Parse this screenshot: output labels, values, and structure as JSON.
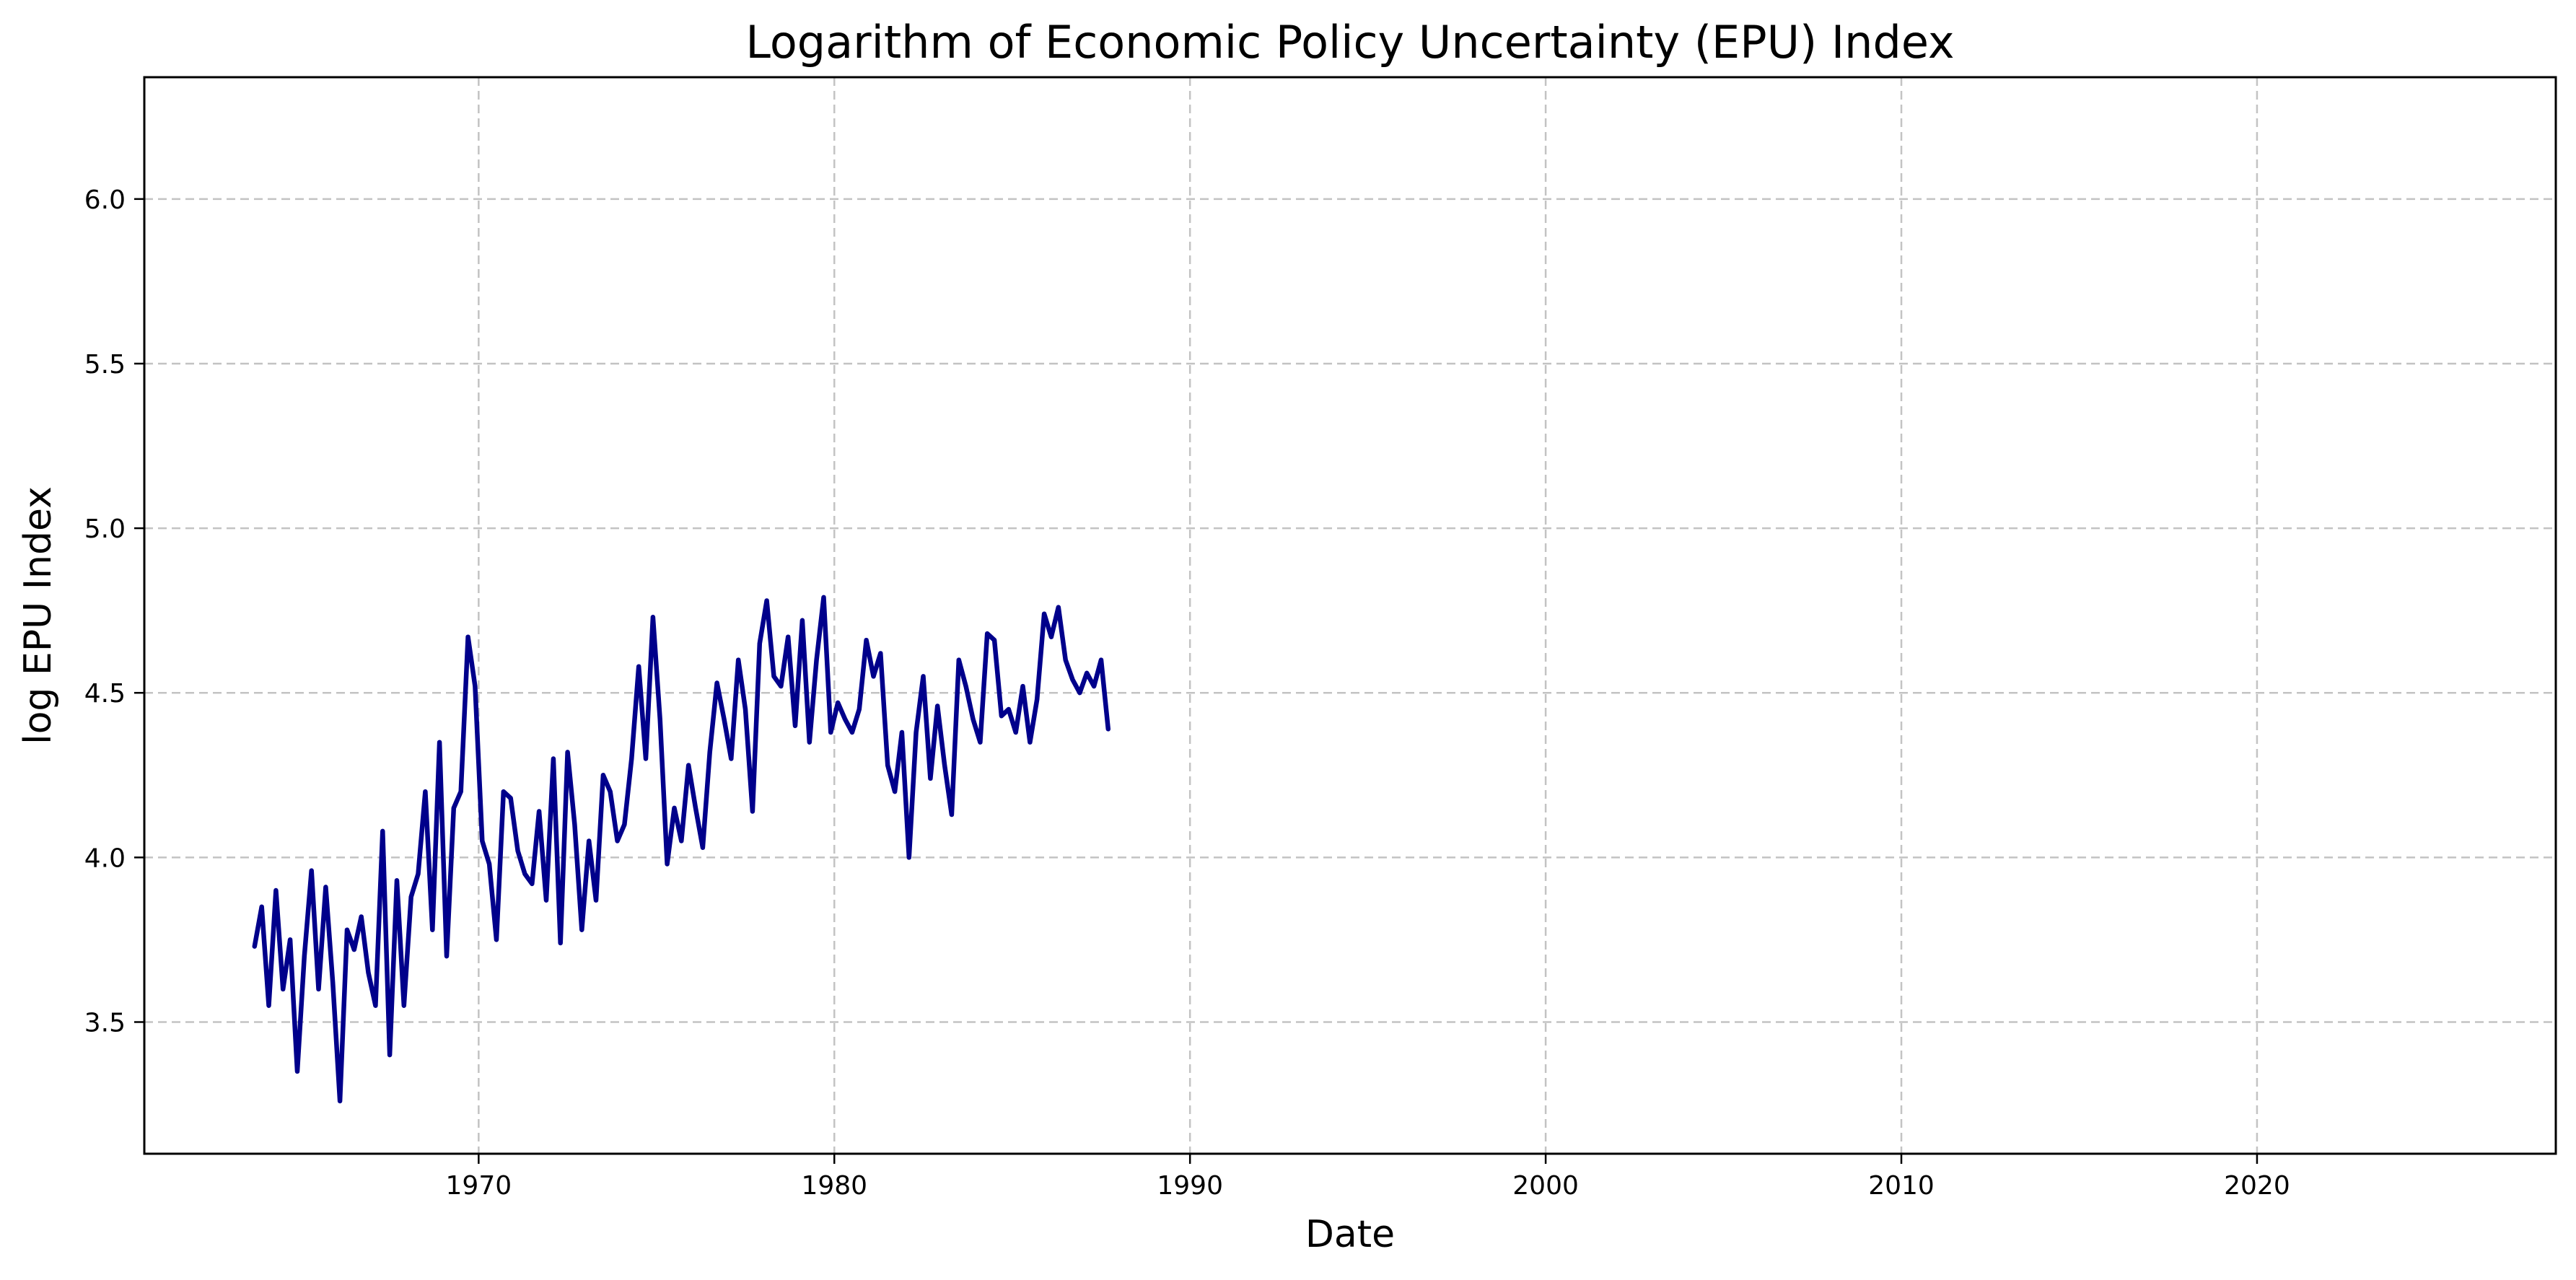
{
  "chart_data": {
    "type": "line",
    "title": "Logarithm of Economic Policy Uncertainty (EPU) Index",
    "xlabel": "Date",
    "ylabel": "log EPU Index",
    "xlim": [
      1960.6,
      1988.0
    ],
    "xlim_full": [
      1960.6,
      2028.4
    ],
    "ylim": [
      3.1,
      6.37
    ],
    "xticks": [
      1970,
      1980,
      1990,
      2000,
      2010,
      2020
    ],
    "yticks": [
      "3.5",
      "4.0",
      "4.5",
      "5.0",
      "5.5",
      "6.0"
    ],
    "grid": true,
    "color": "#00008b",
    "x": [
      1963.7,
      1963.9,
      1964.1,
      1964.3,
      1964.5,
      1964.7,
      1964.9,
      1965.1,
      1965.3,
      1965.5,
      1965.7,
      1965.9,
      1966.1,
      1966.3,
      1966.5,
      1966.7,
      1966.9,
      1967.1,
      1967.3,
      1967.5,
      1967.7,
      1967.9,
      1968.1,
      1968.3,
      1968.5,
      1968.7,
      1968.9,
      1969.1,
      1969.3,
      1969.5,
      1969.7,
      1969.9,
      1970.1,
      1970.3,
      1970.5,
      1970.7,
      1970.9,
      1971.1,
      1971.3,
      1971.5,
      1971.7,
      1971.9,
      1972.1,
      1972.3,
      1972.5,
      1972.7,
      1972.9,
      1973.1,
      1973.3,
      1973.5,
      1973.7,
      1973.9,
      1974.1,
      1974.3,
      1974.5,
      1974.7,
      1974.9,
      1975.1,
      1975.3,
      1975.5,
      1975.7,
      1975.9,
      1976.1,
      1976.3,
      1976.5,
      1976.7,
      1976.9,
      1977.1,
      1977.3,
      1977.5,
      1977.7,
      1977.9,
      1978.1,
      1978.3,
      1978.5,
      1978.7,
      1978.9,
      1979.1,
      1979.3,
      1979.5,
      1979.7,
      1979.9,
      1980.1,
      1980.3,
      1980.5,
      1980.7,
      1980.9,
      1981.1,
      1981.3,
      1981.5,
      1981.7,
      1981.9,
      1982.1,
      1982.3,
      1982.5,
      1982.7,
      1982.9,
      1983.1,
      1983.3,
      1983.5,
      1983.7,
      1983.9,
      1984.1,
      1984.3,
      1984.5,
      1984.7,
      1984.9,
      1985.1,
      1985.3,
      1985.5,
      1985.7,
      1985.9,
      1986.1,
      1986.3,
      1986.5,
      1986.7,
      1986.9,
      1987.1,
      1987.3,
      1987.5,
      1987.7
    ],
    "y": [
      3.73,
      3.85,
      3.55,
      3.9,
      3.6,
      3.75,
      3.35,
      3.7,
      3.96,
      3.6,
      3.91,
      3.62,
      3.26,
      3.78,
      3.72,
      3.82,
      3.65,
      3.55,
      4.08,
      3.4,
      3.93,
      3.55,
      3.88,
      3.95,
      4.2,
      3.78,
      4.35,
      3.7,
      4.15,
      4.2,
      4.67,
      4.52,
      4.05,
      3.98,
      3.75,
      4.2,
      4.18,
      4.02,
      3.95,
      3.92,
      4.14,
      3.87,
      4.3,
      3.74,
      4.32,
      4.1,
      3.78,
      4.05,
      3.87,
      4.25,
      4.2,
      4.05,
      4.1,
      4.3,
      4.58,
      4.3,
      4.73,
      4.42,
      3.98,
      4.15,
      4.05,
      4.28,
      4.15,
      4.03,
      4.32,
      4.53,
      4.42,
      4.3,
      4.6,
      4.45,
      4.14,
      4.65,
      4.78,
      4.55,
      4.52,
      4.67,
      4.4,
      4.72,
      4.35,
      4.6,
      4.79,
      4.38,
      4.47,
      4.42,
      4.38,
      4.45,
      4.66,
      4.55,
      4.62,
      4.28,
      4.2,
      4.38,
      4.0,
      4.38,
      4.55,
      4.24,
      4.46,
      4.28,
      4.13,
      4.6,
      4.52,
      4.42,
      4.35,
      4.68,
      4.66,
      4.43,
      4.45,
      4.38,
      4.52,
      4.35,
      4.48,
      4.74,
      4.67,
      4.76,
      4.6,
      4.54,
      4.5,
      4.56,
      4.52,
      4.6,
      4.39
    ]
  }
}
